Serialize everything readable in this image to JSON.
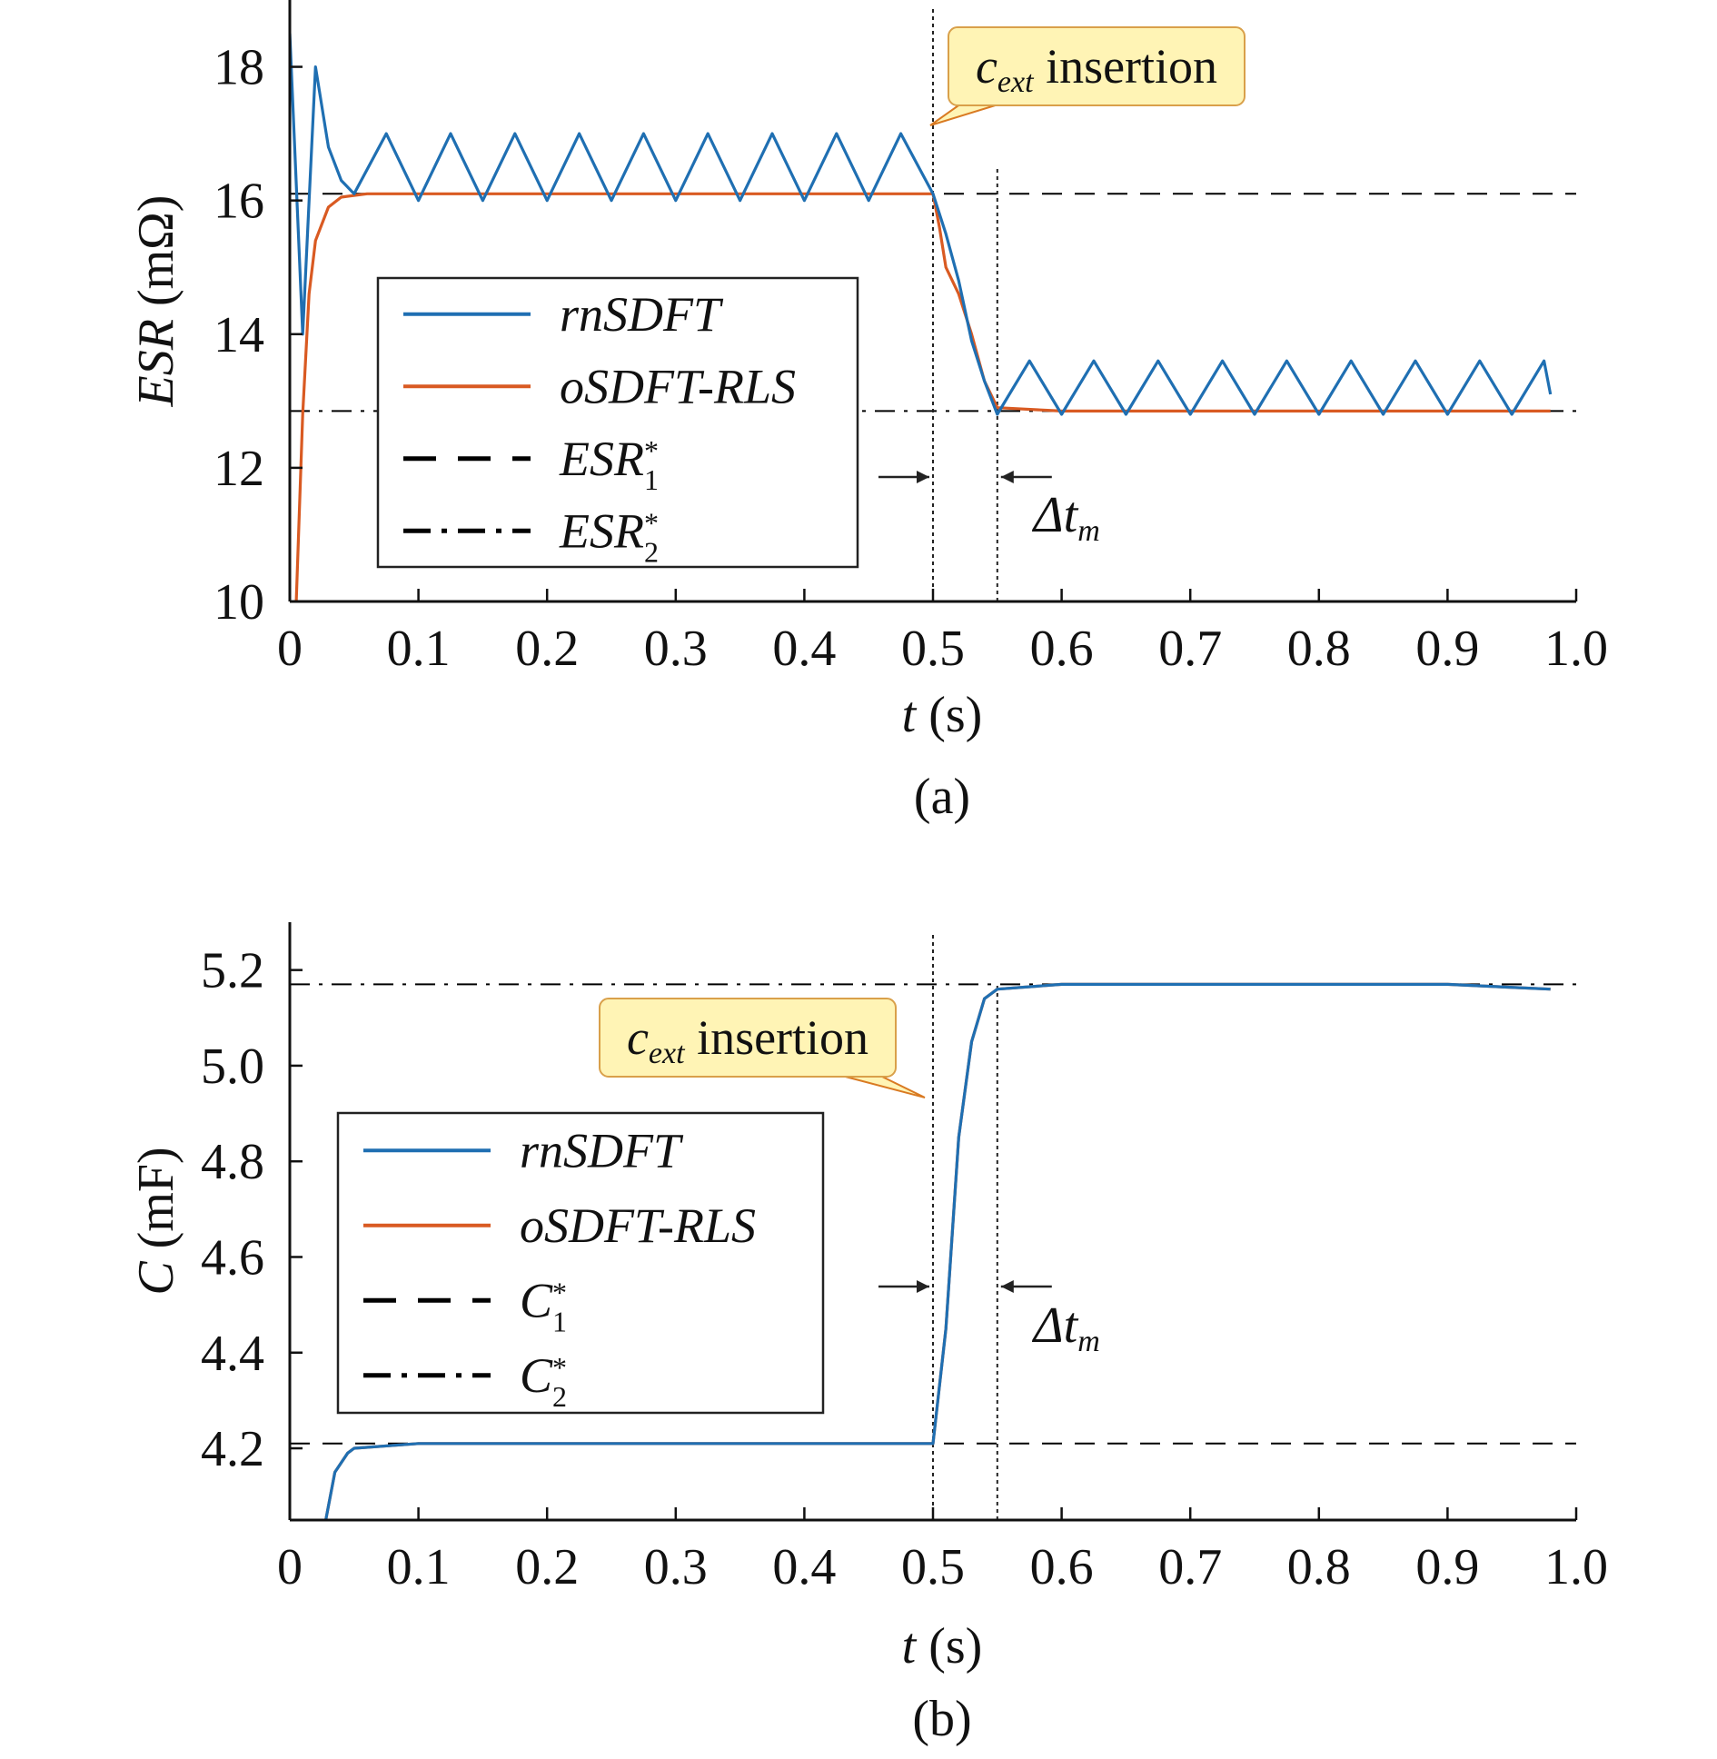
{
  "figure": {
    "panels": [
      {
        "panel_label": "(a)",
        "xlabel_var": "t",
        "xlabel_unit": "(s)",
        "ylabel_var": "ESR",
        "ylabel_unit": "(mΩ)",
        "callout_main": "c",
        "callout_sub": "ext",
        "callout_rest": " insertion",
        "delta_main": "Δt",
        "delta_sub": "m"
      },
      {
        "panel_label": "(b)",
        "xlabel_var": "t",
        "xlabel_unit": "(s)",
        "ylabel_var": "C",
        "ylabel_unit": "(mF)",
        "callout_main": "c",
        "callout_sub": "ext",
        "callout_rest": " insertion",
        "delta_main": "Δt",
        "delta_sub": "m"
      }
    ]
  },
  "chart_data": [
    {
      "type": "line",
      "panel": "(a)",
      "title": "",
      "xlabel": "t (s)",
      "ylabel": "ESR (mΩ)",
      "xlim": [
        0,
        1.0
      ],
      "ylim": [
        10,
        19
      ],
      "xticks": [
        "0",
        "0.1",
        "0.2",
        "0.3",
        "0.4",
        "0.5",
        "0.6",
        "0.7",
        "0.8",
        "0.9",
        "1.0"
      ],
      "yticks": [
        "10",
        "12",
        "14",
        "16",
        "18"
      ],
      "legend_position": "left-center",
      "legend": [
        {
          "label": "rnSDFT",
          "style": "solid",
          "color": "#1f6fb2"
        },
        {
          "label": "oSDFT-RLS",
          "style": "solid",
          "color": "#d95a22"
        },
        {
          "label": "ESR",
          "sub": "1",
          "sup": "*",
          "style": "dashed",
          "color": "#000000"
        },
        {
          "label": "ESR",
          "sub": "2",
          "sup": "*",
          "style": "dashdot",
          "color": "#000000"
        }
      ],
      "series": [
        {
          "name": "rnSDFT",
          "color": "#1f6fb2",
          "x": [
            0,
            0.01,
            0.02,
            0.03,
            0.04,
            0.05,
            0.075,
            0.1,
            0.125,
            0.15,
            0.175,
            0.2,
            0.225,
            0.25,
            0.275,
            0.3,
            0.325,
            0.35,
            0.375,
            0.4,
            0.425,
            0.45,
            0.475,
            0.5,
            0.51,
            0.52,
            0.53,
            0.54,
            0.55,
            0.575,
            0.6,
            0.625,
            0.65,
            0.675,
            0.7,
            0.725,
            0.75,
            0.775,
            0.8,
            0.825,
            0.85,
            0.875,
            0.9,
            0.925,
            0.95,
            0.975,
            0.98
          ],
          "values": [
            18.5,
            14.0,
            18.0,
            16.8,
            16.3,
            16.1,
            17.0,
            16.0,
            17.0,
            16.0,
            17.0,
            16.0,
            17.0,
            16.0,
            17.0,
            16.0,
            17.0,
            16.0,
            17.0,
            16.0,
            17.0,
            16.0,
            17.0,
            16.1,
            15.5,
            14.8,
            13.9,
            13.3,
            12.8,
            13.6,
            12.8,
            13.6,
            12.8,
            13.6,
            12.8,
            13.6,
            12.8,
            13.6,
            12.8,
            13.6,
            12.8,
            13.6,
            12.8,
            13.6,
            12.8,
            13.6,
            13.1
          ]
        },
        {
          "name": "oSDFT-RLS",
          "color": "#d95a22",
          "x": [
            0.005,
            0.01,
            0.015,
            0.02,
            0.03,
            0.04,
            0.06,
            0.1,
            0.2,
            0.3,
            0.4,
            0.5,
            0.505,
            0.51,
            0.52,
            0.53,
            0.54,
            0.55,
            0.6,
            0.7,
            0.8,
            0.9,
            0.98
          ],
          "values": [
            10.0,
            12.8,
            14.6,
            15.4,
            15.9,
            16.05,
            16.1,
            16.1,
            16.1,
            16.1,
            16.1,
            16.1,
            15.6,
            15.0,
            14.6,
            14.0,
            13.3,
            12.9,
            12.85,
            12.85,
            12.85,
            12.85,
            12.85
          ]
        },
        {
          "name": "ESR1*",
          "color": "#000000",
          "x": [
            0,
            1.0
          ],
          "values": [
            16.1,
            16.1
          ]
        },
        {
          "name": "ESR2*",
          "color": "#000000",
          "x": [
            0,
            1.0
          ],
          "values": [
            12.85,
            12.85
          ]
        }
      ],
      "annotations": [
        {
          "text": "c_ext insertion",
          "x": 0.5
        },
        {
          "text": "Δt_m",
          "x": [
            0.5,
            0.55
          ]
        }
      ]
    },
    {
      "type": "line",
      "panel": "(b)",
      "title": "",
      "xlabel": "t (s)",
      "ylabel": "C (mF)",
      "xlim": [
        0,
        1.0
      ],
      "ylim": [
        4.05,
        5.3
      ],
      "xticks": [
        "0",
        "0.1",
        "0.2",
        "0.3",
        "0.4",
        "0.5",
        "0.6",
        "0.7",
        "0.8",
        "0.9",
        "1.0"
      ],
      "yticks": [
        "4.2",
        "4.4",
        "4.6",
        "4.8",
        "5.0",
        "5.2"
      ],
      "legend_position": "left-center",
      "legend": [
        {
          "label": "rnSDFT",
          "style": "solid",
          "color": "#1f6fb2"
        },
        {
          "label": "oSDFT-RLS",
          "style": "solid",
          "color": "#d95a22"
        },
        {
          "label": "C",
          "sub": "1",
          "sup": "*",
          "style": "dashed",
          "color": "#000000"
        },
        {
          "label": "C",
          "sub": "2",
          "sup": "*",
          "style": "dashdot",
          "color": "#000000"
        }
      ],
      "series": [
        {
          "name": "rnSDFT",
          "color": "#1f6fb2",
          "x": [
            0.028,
            0.035,
            0.045,
            0.05,
            0.1,
            0.2,
            0.3,
            0.4,
            0.5,
            0.51,
            0.52,
            0.53,
            0.54,
            0.55,
            0.6,
            0.7,
            0.8,
            0.9,
            0.98
          ],
          "values": [
            4.05,
            4.15,
            4.19,
            4.2,
            4.21,
            4.21,
            4.21,
            4.21,
            4.21,
            4.45,
            4.85,
            5.05,
            5.14,
            5.16,
            5.17,
            5.17,
            5.17,
            5.17,
            5.16
          ]
        },
        {
          "name": "oSDFT-RLS",
          "color": "#d95a22",
          "x": [
            0.028,
            0.035,
            0.045,
            0.05,
            0.1,
            0.2,
            0.3,
            0.4,
            0.5,
            0.51,
            0.52,
            0.53,
            0.54,
            0.55,
            0.6,
            0.7,
            0.8,
            0.9,
            0.98
          ],
          "values": [
            4.05,
            4.15,
            4.19,
            4.2,
            4.21,
            4.21,
            4.21,
            4.21,
            4.21,
            4.45,
            4.85,
            5.05,
            5.14,
            5.16,
            5.17,
            5.17,
            5.17,
            5.17,
            5.16
          ]
        },
        {
          "name": "C1*",
          "color": "#000000",
          "x": [
            0,
            1.0
          ],
          "values": [
            4.21,
            4.21
          ]
        },
        {
          "name": "C2*",
          "color": "#000000",
          "x": [
            0,
            1.0
          ],
          "values": [
            5.17,
            5.17
          ]
        }
      ],
      "annotations": [
        {
          "text": "c_ext insertion",
          "x": 0.5
        },
        {
          "text": "Δt_m",
          "x": [
            0.5,
            0.55
          ]
        }
      ]
    }
  ]
}
